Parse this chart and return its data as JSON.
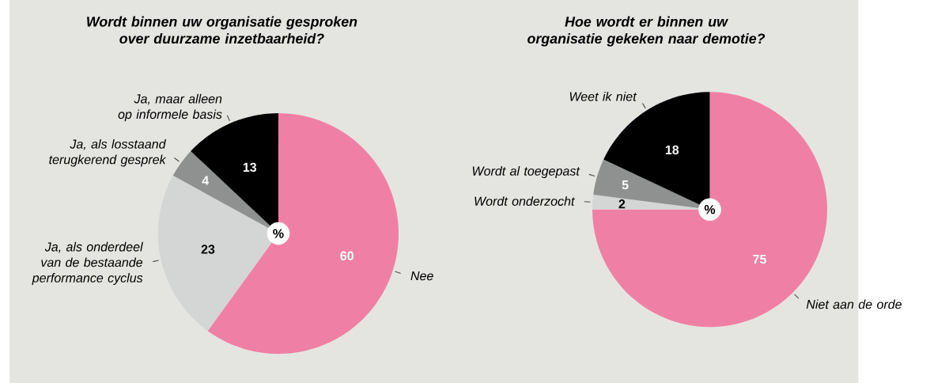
{
  "chart_data": [
    {
      "type": "pie",
      "title": "Wordt binnen uw organisatie gesproken over duurzame inzetbaarheid?",
      "categories": [
        "Nee",
        "Ja, als onderdeel van de bestaande performance cyclus",
        "Ja, als losstaand terugkerend gesprek",
        "Ja, maar alleen op informele basis"
      ],
      "values": [
        60,
        23,
        4,
        13
      ],
      "colors": [
        "#f07fa6",
        "#d4d5d5",
        "#8f9090",
        "#000000"
      ],
      "data_labels": true,
      "annotations": [
        "%"
      ]
    },
    {
      "type": "pie",
      "title": "Hoe wordt er binnen uw organisatie gekeken naar demotie?",
      "categories": [
        "Niet aan de orde",
        "Wordt onderzocht",
        "Wordt al toegepast",
        "Weet ik niet"
      ],
      "values": [
        75,
        2,
        5,
        18
      ],
      "colors": [
        "#f07fa6",
        "#d4d5d5",
        "#8f9090",
        "#000000"
      ],
      "data_labels": true,
      "annotations": [
        "%"
      ]
    }
  ]
}
